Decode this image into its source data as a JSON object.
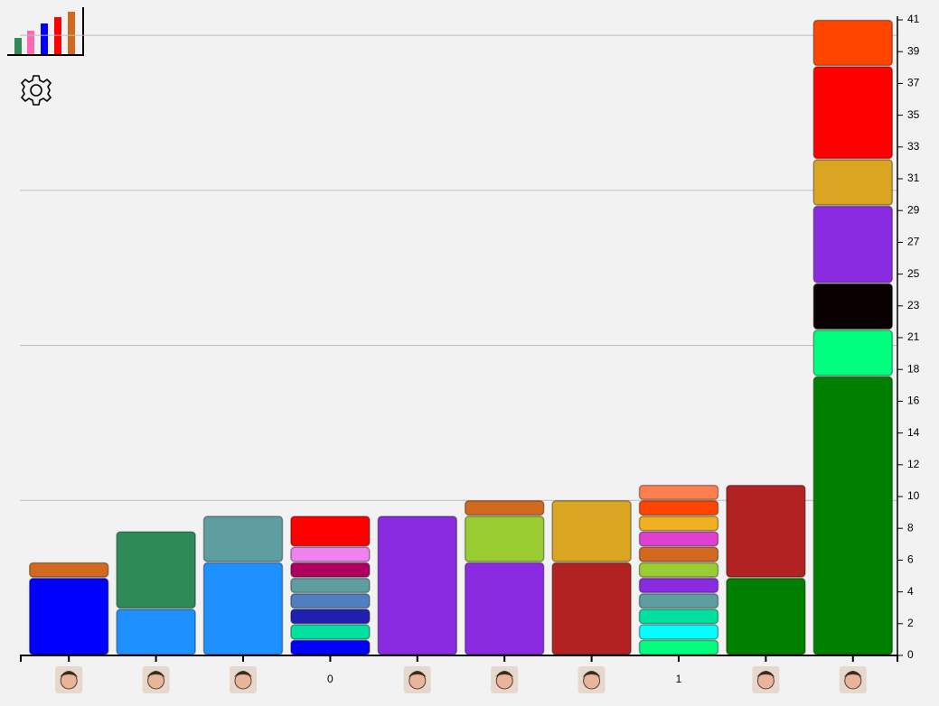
{
  "chart_data": {
    "type": "bar",
    "stacked": true,
    "categories": [
      null,
      null,
      null,
      "0",
      null,
      null,
      null,
      "1",
      null,
      null
    ],
    "stacks": [
      {
        "segments": [
          {
            "value": 5,
            "color": "#0000ff"
          },
          {
            "value": 1,
            "color": "#d2691e"
          }
        ]
      },
      {
        "segments": [
          {
            "value": 3,
            "color": "#1e90ff"
          },
          {
            "value": 5,
            "color": "#2e8b57"
          }
        ]
      },
      {
        "segments": [
          {
            "value": 6,
            "color": "#1e90ff"
          },
          {
            "value": 3,
            "color": "#5f9ea0"
          }
        ]
      },
      {
        "segments": [
          {
            "value": 1,
            "color": "#0000ff"
          },
          {
            "value": 1,
            "color": "#00e0a0"
          },
          {
            "value": 1,
            "color": "#2020b0"
          },
          {
            "value": 1,
            "color": "#4f7fc0"
          },
          {
            "value": 1,
            "color": "#5f9ea0"
          },
          {
            "value": 1,
            "color": "#b0005f"
          },
          {
            "value": 1,
            "color": "#ee82ee"
          },
          {
            "value": 2,
            "color": "#ff0000"
          }
        ]
      },
      {
        "segments": [
          {
            "value": 9,
            "color": "#8a2be2"
          }
        ]
      },
      {
        "segments": [
          {
            "value": 6,
            "color": "#8a2be2"
          },
          {
            "value": 3,
            "color": "#9acd32"
          },
          {
            "value": 1,
            "color": "#d2691e"
          }
        ]
      },
      {
        "segments": [
          {
            "value": 6,
            "color": "#b22222"
          },
          {
            "value": 4,
            "color": "#daa520"
          }
        ]
      },
      {
        "segments": [
          {
            "value": 1,
            "color": "#00ff7f"
          },
          {
            "value": 1,
            "color": "#00ffff"
          },
          {
            "value": 1,
            "color": "#00e0a0"
          },
          {
            "value": 1,
            "color": "#5f9ea0"
          },
          {
            "value": 1,
            "color": "#8a2be2"
          },
          {
            "value": 1,
            "color": "#9acd32"
          },
          {
            "value": 1,
            "color": "#d2691e"
          },
          {
            "value": 1,
            "color": "#e040d0"
          },
          {
            "value": 1,
            "color": "#f0b020"
          },
          {
            "value": 1,
            "color": "#ff4500"
          },
          {
            "value": 1,
            "color": "#ff7f50"
          }
        ]
      },
      {
        "segments": [
          {
            "value": 5,
            "color": "#008000"
          },
          {
            "value": 6,
            "color": "#b22222"
          }
        ]
      },
      {
        "segments": [
          {
            "value": 18,
            "color": "#008000"
          },
          {
            "value": 3,
            "color": "#00ff7f"
          },
          {
            "value": 3,
            "color": "#0a0000"
          },
          {
            "value": 5,
            "color": "#8a2be2"
          },
          {
            "value": 3,
            "color": "#daa520"
          },
          {
            "value": 6,
            "color": "#ff0000"
          },
          {
            "value": 3,
            "color": "#ff4500"
          }
        ]
      }
    ],
    "ylim": [
      0,
      41
    ],
    "yticks": [
      0,
      {
        "value": 2.05,
        "label": "2"
      },
      {
        "value": 4.1,
        "label": "4"
      },
      {
        "value": 6.15,
        "label": "6"
      },
      {
        "value": 8.2,
        "label": "8"
      },
      {
        "value": 10.25,
        "label": "10"
      },
      {
        "value": 12.3,
        "label": "12"
      },
      {
        "value": 14.35,
        "label": "14"
      },
      {
        "value": 16.4,
        "label": "16"
      },
      {
        "value": 18.45,
        "label": "18"
      },
      {
        "value": 20.5,
        "label": "21"
      },
      {
        "value": 22.55,
        "label": "23"
      },
      {
        "value": 24.6,
        "label": "25"
      },
      {
        "value": 26.65,
        "label": "27"
      },
      {
        "value": 28.7,
        "label": "29"
      },
      {
        "value": 30.75,
        "label": "31"
      },
      {
        "value": 32.8,
        "label": "33"
      },
      {
        "value": 34.85,
        "label": "35"
      },
      {
        "value": 36.9,
        "label": "37"
      },
      {
        "value": 38.95,
        "label": "39"
      },
      41
    ],
    "grid": true,
    "grid_values": [
      10,
      20,
      30,
      40
    ],
    "axis_side": "right"
  }
}
